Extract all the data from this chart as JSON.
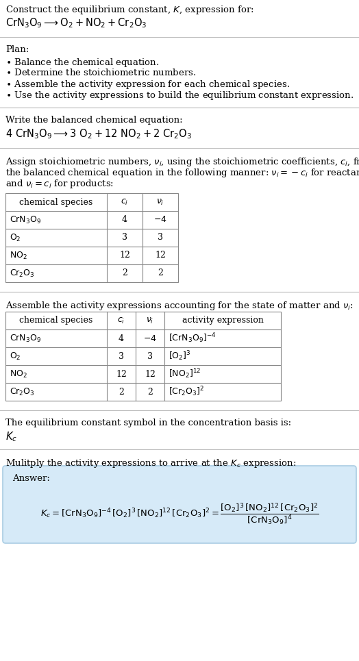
{
  "bg_color": "#ffffff",
  "text_color": "#000000",
  "title_line1": "Construct the equilibrium constant, $K$, expression for:",
  "title_line2": "$\\mathrm{CrN_3O_9} \\longrightarrow \\mathrm{O_2 + NO_2 + Cr_2O_3}$",
  "plan_header": "Plan:",
  "plan_items": [
    "$\\bullet$ Balance the chemical equation.",
    "$\\bullet$ Determine the stoichiometric numbers.",
    "$\\bullet$ Assemble the activity expression for each chemical species.",
    "$\\bullet$ Use the activity expressions to build the equilibrium constant expression."
  ],
  "balanced_header": "Write the balanced chemical equation:",
  "balanced_eq": "$4\\ \\mathrm{CrN_3O_9} \\longrightarrow 3\\ \\mathrm{O_2} + 12\\ \\mathrm{NO_2} + 2\\ \\mathrm{Cr_2O_3}$",
  "stoich_lines": [
    "Assign stoichiometric numbers, $\\nu_i$, using the stoichiometric coefficients, $c_i$, from",
    "the balanced chemical equation in the following manner: $\\nu_i = -c_i$ for reactants",
    "and $\\nu_i = c_i$ for products:"
  ],
  "table1_headers": [
    "chemical species",
    "$c_i$",
    "$\\nu_i$"
  ],
  "table1_rows": [
    [
      "$\\mathrm{CrN_3O_9}$",
      "4",
      "$-4$"
    ],
    [
      "$\\mathrm{O_2}$",
      "3",
      "3"
    ],
    [
      "$\\mathrm{NO_2}$",
      "12",
      "12"
    ],
    [
      "$\\mathrm{Cr_2O_3}$",
      "2",
      "2"
    ]
  ],
  "assemble_header": "Assemble the activity expressions accounting for the state of matter and $\\nu_i$:",
  "table2_headers": [
    "chemical species",
    "$c_i$",
    "$\\nu_i$",
    "activity expression"
  ],
  "table2_rows": [
    [
      "$\\mathrm{CrN_3O_9}$",
      "4",
      "$-4$",
      "$[\\mathrm{CrN_3O_9}]^{-4}$"
    ],
    [
      "$\\mathrm{O_2}$",
      "3",
      "3",
      "$[\\mathrm{O_2}]^3$"
    ],
    [
      "$\\mathrm{NO_2}$",
      "12",
      "12",
      "$[\\mathrm{NO_2}]^{12}$"
    ],
    [
      "$\\mathrm{Cr_2O_3}$",
      "2",
      "2",
      "$[\\mathrm{Cr_2O_3}]^2$"
    ]
  ],
  "kc_symbol_header": "The equilibrium constant symbol in the concentration basis is:",
  "kc_symbol": "$K_c$",
  "multiply_header": "Mulitply the activity expressions to arrive at the $K_c$ expression:",
  "answer_label": "Answer:",
  "kc_expr": "$K_c = [\\mathrm{CrN_3O_9}]^{-4}\\,[\\mathrm{O_2}]^3\\,[\\mathrm{NO_2}]^{12}\\,[\\mathrm{Cr_2O_3}]^2 = \\dfrac{[\\mathrm{O_2}]^3\\,[\\mathrm{NO_2}]^{12}\\,[\\mathrm{Cr_2O_3}]^2}{[\\mathrm{CrN_3O_9}]^4}$",
  "answer_box_color": "#d6eaf8",
  "answer_box_border": "#a9cce3",
  "divider_color": "#bbbbbb",
  "table_border_color": "#888888",
  "font_size": 9.5,
  "font_size_large": 10.5
}
